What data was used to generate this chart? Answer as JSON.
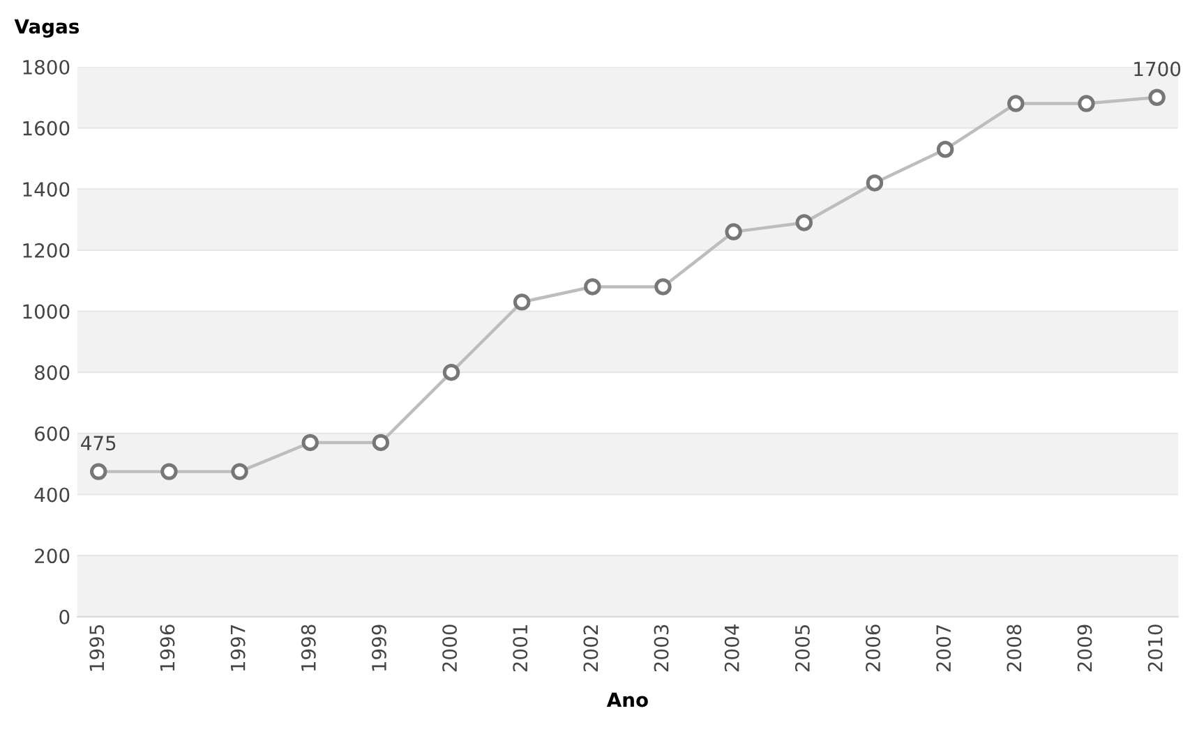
{
  "chart_data": {
    "type": "line",
    "xlabel": "Ano",
    "ylabel": "Vagas",
    "categories": [
      "1995",
      "1996",
      "1997",
      "1998",
      "1999",
      "2000",
      "2001",
      "2002",
      "2003",
      "2004",
      "2005",
      "2006",
      "2007",
      "2008",
      "2009",
      "2010"
    ],
    "series": [
      {
        "color": "#bdbdbd",
        "values": [
          475,
          475,
          475,
          570,
          570,
          800,
          1030,
          1080,
          1080,
          1260,
          1290,
          1420,
          1530,
          1680,
          1680,
          1700
        ],
        "value_labels": [
          "475",
          null,
          null,
          null,
          null,
          null,
          null,
          null,
          null,
          null,
          null,
          null,
          null,
          null,
          null,
          "1700"
        ]
      }
    ],
    "ylim": [
      0,
      1800
    ],
    "yticks": [
      0,
      200,
      400,
      600,
      800,
      1000,
      1200,
      1400,
      1600,
      1800
    ],
    "grid": "y",
    "marker": "circle",
    "line_style": "solid"
  }
}
